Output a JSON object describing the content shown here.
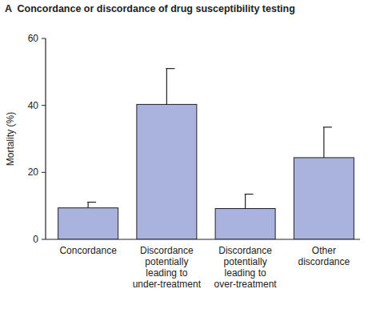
{
  "chart_data": {
    "type": "bar",
    "title": "A  Concordance or discordance of drug susceptibility testing",
    "y_label": "Mortality (%)",
    "categories": [
      "Concordance",
      "Discordance potentially leading to under-treatment",
      "Discordance potentially leading to over-treatment",
      "Other discordance"
    ],
    "values": [
      9.4,
      40.3,
      9.2,
      24.4
    ],
    "errors": [
      1.7,
      10.7,
      4.3,
      9.1
    ],
    "color": "#aab3dd",
    "ylim": [
      0,
      60
    ],
    "yticks": [
      0,
      20,
      40,
      60
    ],
    "grid": false
  }
}
